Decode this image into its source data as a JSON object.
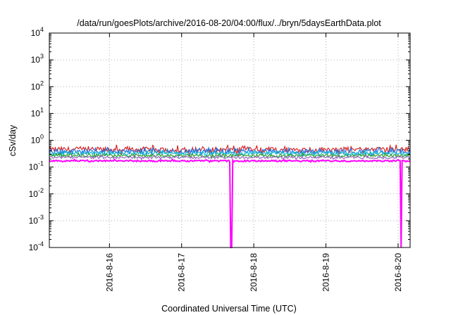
{
  "chart_data": {
    "type": "line",
    "title": "/data/run/goesPlots/archive/2016-08-20/04:00/flux/../bryn/5daysEarthData.plot",
    "xlabel": "Coordinated Universal Time (UTC)",
    "ylabel": "cSv/day",
    "yscale": "log",
    "ylim": [
      0.0001,
      10000
    ],
    "yticks": [
      {
        "value": 0.0001,
        "base": "10",
        "exp": "-4"
      },
      {
        "value": 0.001,
        "base": "10",
        "exp": "-3"
      },
      {
        "value": 0.01,
        "base": "10",
        "exp": "-2"
      },
      {
        "value": 0.1,
        "base": "10",
        "exp": "-1"
      },
      {
        "value": 1,
        "base": "10",
        "exp": "0"
      },
      {
        "value": 10,
        "base": "10",
        "exp": "1"
      },
      {
        "value": 100,
        "base": "10",
        "exp": "2"
      },
      {
        "value": 1000,
        "base": "10",
        "exp": "3"
      },
      {
        "value": 10000,
        "base": "10",
        "exp": "4"
      }
    ],
    "xlim": [
      "2016-08-15T04:00",
      "2016-08-20T04:00"
    ],
    "xticks": [
      {
        "value": "2016-08-16T00:00",
        "label": "2016-8-16"
      },
      {
        "value": "2016-08-17T00:00",
        "label": "2016-8-17"
      },
      {
        "value": "2016-08-18T00:00",
        "label": "2016-8-18"
      },
      {
        "value": "2016-08-19T00:00",
        "label": "2016-8-19"
      },
      {
        "value": "2016-08-20T00:00",
        "label": "2016-8-20"
      }
    ],
    "grid": true,
    "legend": "none",
    "series": [
      {
        "color": "#d62728",
        "level": 0.45,
        "spread": 0.25
      },
      {
        "color": "#1f77e4",
        "level": 0.38,
        "spread": 0.22
      },
      {
        "color": "#17becf",
        "level": 0.32,
        "spread": 0.15
      },
      {
        "color": "#2ca02c",
        "level": 0.27,
        "spread": 0.12
      },
      {
        "color": "#9467bd",
        "level": 0.23,
        "spread": 0.1
      },
      {
        "color": "#ff00ff",
        "level": 0.17,
        "spread": 0.06,
        "drops": [
          {
            "at": "2016-08-17T16:30",
            "to": 0.0001
          },
          {
            "at": "2016-08-20T01:00",
            "to": 0.0001
          }
        ]
      }
    ]
  }
}
